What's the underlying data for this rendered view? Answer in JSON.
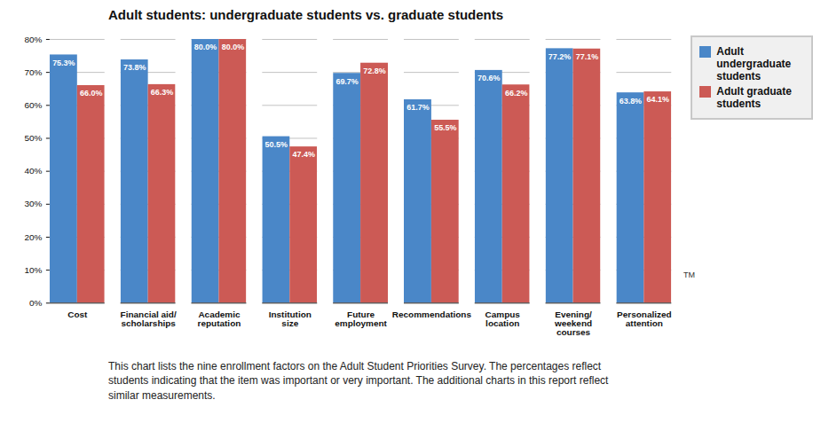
{
  "chart_data": {
    "type": "bar",
    "title": "Adult students: undergraduate students vs. graduate students",
    "caption": "This chart lists the nine enrollment factors on the Adult Student Priorities Survey. The percentages reflect students indicating that the item was important or very important. The additional charts in this report reflect similar measurements.",
    "annotations": [
      "TM"
    ],
    "categories": [
      "Cost",
      "Financial aid/\nscholarships",
      "Academic\nreputation",
      "Institution\nsize",
      "Future\nemployment",
      "Recommendations",
      "Campus\nlocation",
      "Evening/\nweekend\ncourses",
      "Personalized\nattention"
    ],
    "series": [
      {
        "name": "Adult undergraduate students",
        "color": "#4a87c8",
        "values": [
          75.3,
          73.8,
          80.0,
          50.5,
          69.7,
          61.7,
          70.6,
          77.2,
          63.8
        ],
        "value_labels": [
          "75.3%",
          "73.8%",
          "80.0%",
          "50.5%",
          "69.7%",
          "61.7%",
          "70.6%",
          "77.2%",
          "63.8%"
        ]
      },
      {
        "name": "Adult graduate students",
        "color": "#cc5a55",
        "values": [
          66.0,
          66.3,
          80.0,
          47.4,
          72.8,
          55.5,
          66.2,
          77.1,
          64.1
        ],
        "value_labels": [
          "66.0%",
          "66.3%",
          "80.0%",
          "47.4%",
          "72.8%",
          "55.5%",
          "66.2%",
          "77.1%",
          "64.1%"
        ]
      }
    ],
    "ylim": [
      0,
      80
    ],
    "yticks": [
      {
        "value": 0,
        "label": "0%"
      },
      {
        "value": 10,
        "label": "10%"
      },
      {
        "value": 20,
        "label": "20%"
      },
      {
        "value": 30,
        "label": "30%"
      },
      {
        "value": 40,
        "label": "40%"
      },
      {
        "value": 50,
        "label": "50%"
      },
      {
        "value": 60,
        "label": "60%"
      },
      {
        "value": 70,
        "label": "70%"
      },
      {
        "value": 80,
        "label": "80%"
      }
    ],
    "grid": true,
    "legend": "right",
    "data_labels": true
  }
}
